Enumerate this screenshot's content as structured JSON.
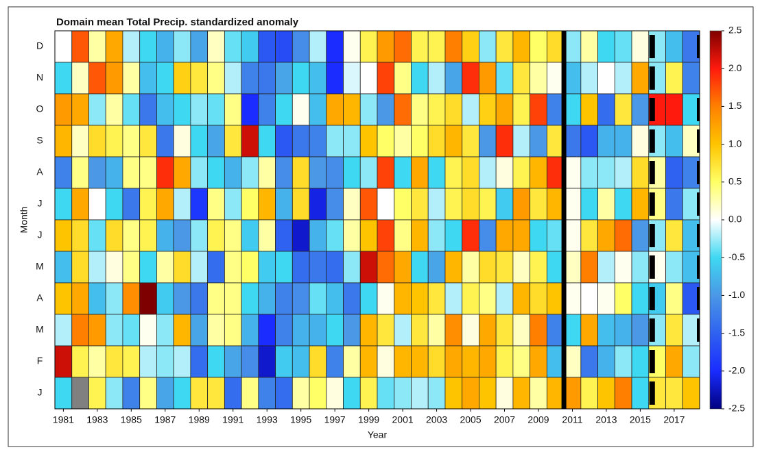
{
  "chart_data": {
    "type": "heatmap",
    "title": "Domain mean Total Precip. standardized anomaly",
    "xlabel": "Year",
    "ylabel": "Month",
    "categories": [
      "D",
      "N",
      "O",
      "S",
      "A",
      "J",
      "J",
      "M",
      "A",
      "M",
      "F",
      "J"
    ],
    "x": [
      1981,
      1982,
      1983,
      1984,
      1985,
      1986,
      1987,
      1988,
      1989,
      1990,
      1991,
      1992,
      1993,
      1994,
      1995,
      1996,
      1997,
      1998,
      1999,
      2000,
      2001,
      2002,
      2003,
      2004,
      2005,
      2006,
      2007,
      2008,
      2009,
      2010,
      2011,
      2012,
      2013,
      2014,
      2015,
      2016,
      2017,
      2018
    ],
    "xlim": [
      1980.5,
      2018.5
    ],
    "xticks": [
      1981,
      1983,
      1985,
      1987,
      1989,
      1991,
      1993,
      1995,
      1997,
      1999,
      2001,
      2003,
      2005,
      2007,
      2009,
      2011,
      2013,
      2015,
      2017
    ],
    "values": [
      [
        0,
        1.7,
        0.3,
        1.2,
        -0.2,
        -0.5,
        -0.8,
        -0.3,
        -0.9,
        0.2,
        -0.4,
        -0.6,
        -1.6,
        -1.7,
        -1.1,
        -0.2,
        -2.0,
        0.05,
        0.6,
        1.3,
        1.6,
        0.6,
        0.6,
        1.5,
        0.9,
        -0.3,
        0.7,
        1.1,
        0.5,
        0.8,
        -0.3,
        0.3,
        -0.5,
        -0.4,
        0.1,
        -0.3,
        -0.7,
        -1.3
      ],
      [
        -0.5,
        0.2,
        1.7,
        1.3,
        0.3,
        -0.7,
        -0.5,
        0.9,
        0.7,
        0.4,
        -0.2,
        -1.2,
        -1.3,
        -0.9,
        -0.5,
        -0.7,
        -2.0,
        -0.1,
        0,
        1.8,
        0.4,
        -0.5,
        -0.2,
        -0.9,
        1.9,
        1.3,
        -0.4,
        0.7,
        0.3,
        0.05,
        -0.7,
        -0.2,
        0,
        -0.2,
        1.2,
        -0.3,
        0.6,
        -1.2
      ],
      [
        1.3,
        1.2,
        -0.3,
        0.3,
        -0.4,
        -1.3,
        -0.7,
        -0.5,
        -0.3,
        -0.4,
        0.4,
        -2.0,
        -1.2,
        -0.5,
        0.05,
        -0.7,
        1.2,
        1.1,
        -0.3,
        -1.0,
        1.6,
        0.4,
        0.6,
        0.8,
        -0.2,
        0.9,
        1.2,
        0.6,
        1.8,
        -1.2,
        -0.5,
        1.0,
        -1.4,
        0.7,
        -1.0,
        2.0,
        2.0,
        -0.5
      ],
      [
        1.1,
        0.2,
        0.8,
        0.6,
        0.4,
        0.7,
        -1.3,
        0.1,
        -0.5,
        -0.9,
        0.7,
        2.2,
        -0.5,
        -1.6,
        -1.3,
        -1.2,
        -0.3,
        -0.3,
        1.0,
        0.5,
        0.3,
        0.5,
        0.8,
        1.1,
        0.7,
        -1.0,
        1.9,
        -0.2,
        -1.0,
        0.7,
        -1.3,
        -1.6,
        -0.8,
        -0.8,
        0.1,
        -0.3,
        -0.7,
        0.2
      ],
      [
        -1.2,
        0.4,
        -1.0,
        -0.8,
        0.4,
        0.4,
        1.9,
        1.2,
        -0.3,
        -0.5,
        -0.8,
        -0.3,
        0.3,
        -1.1,
        0.8,
        -1.0,
        -1.1,
        -0.5,
        -0.3,
        1.8,
        -0.5,
        1.2,
        -0.5,
        0.6,
        0.8,
        -0.2,
        0.1,
        0.6,
        1.1,
        1.9,
        0.05,
        -0.3,
        -0.3,
        -0.2,
        0.8,
        0.3,
        -1.5,
        -1.2
      ],
      [
        -0.5,
        1.2,
        0,
        -0.5,
        -1.3,
        0.6,
        1.2,
        -0.2,
        -1.9,
        0.4,
        -0.3,
        0.5,
        1.1,
        -0.8,
        0.8,
        -2.1,
        -1.1,
        0.2,
        1.7,
        0,
        0.5,
        0.7,
        -0.2,
        0.6,
        0.8,
        0.6,
        -0.6,
        1.3,
        0.7,
        1.1,
        0.05,
        -0.5,
        0.3,
        -0.5,
        1.1,
        0.4,
        -1.3,
        -0.3
      ],
      [
        1.0,
        0.8,
        -0.4,
        0.8,
        0.4,
        0.6,
        -0.8,
        -1.0,
        -0.3,
        0.6,
        0.4,
        -0.6,
        0.3,
        -1.5,
        -2.2,
        -0.8,
        -0.4,
        0.3,
        1.0,
        1.8,
        0.4,
        1.1,
        -0.3,
        -0.5,
        1.9,
        -1.1,
        1.2,
        1.2,
        -0.5,
        -0.4,
        0.05,
        0.7,
        1.2,
        1.6,
        -1.0,
        -0.3,
        0.7,
        -0.7
      ],
      [
        -0.7,
        0.8,
        -0.2,
        0.1,
        0.4,
        -0.5,
        0.3,
        0.8,
        -0.2,
        -1.4,
        0.4,
        0.5,
        -0.6,
        -0.5,
        -1.4,
        -1.3,
        -1.4,
        -0.3,
        2.2,
        1.6,
        1.2,
        -0.5,
        -0.9,
        1.1,
        0.3,
        0.8,
        0.7,
        0.2,
        0.6,
        -0.5,
        0.2,
        1.5,
        -0.2,
        0.05,
        -0.3,
        0.05,
        -0.3,
        -0.7
      ],
      [
        1.0,
        1.2,
        -0.7,
        -0.3,
        1.4,
        2.5,
        -0.6,
        -1.0,
        -1.3,
        0.4,
        0.4,
        -0.5,
        -0.8,
        -1.2,
        -1.1,
        -0.4,
        -0.7,
        -1.3,
        -0.5,
        0.05,
        1.1,
        1.0,
        0.7,
        -0.2,
        0.6,
        0.4,
        -0.2,
        1.1,
        0.8,
        1.0,
        0.05,
        0,
        0.05,
        0.5,
        -0.5,
        -0.6,
        0.4,
        -1.6
      ],
      [
        -0.2,
        1.5,
        1.3,
        -0.3,
        -0.4,
        0.05,
        -0.3,
        1.1,
        -0.9,
        0.3,
        0.4,
        -0.8,
        -2.0,
        -1.2,
        -0.8,
        -0.8,
        -0.5,
        -1.0,
        1.1,
        0.7,
        -0.2,
        0.7,
        0.3,
        1.4,
        0.1,
        1.2,
        0.7,
        0.2,
        1.5,
        -1.2,
        -0.5,
        1.2,
        -0.7,
        -0.8,
        -1.0,
        -0.3,
        0.7,
        -0.2
      ],
      [
        2.2,
        0.6,
        0.3,
        0.7,
        0.6,
        -0.2,
        -0.3,
        -0.2,
        -1.4,
        -0.5,
        -0.9,
        -1.1,
        -2.2,
        -0.6,
        -0.7,
        0.8,
        -1.2,
        0.3,
        1.1,
        0.1,
        1.1,
        1.1,
        0.8,
        1.2,
        1.1,
        1.2,
        0.6,
        0.4,
        1.2,
        -0.7,
        0.2,
        -1.3,
        -0.8,
        -0.3,
        -0.5,
        0.5,
        1.2,
        -0.3
      ],
      [
        -0.5,
        null,
        0.6,
        -0.3,
        -1.2,
        0.4,
        -0.9,
        -0.5,
        0.7,
        0.7,
        -1.4,
        0.4,
        -1.2,
        -1.4,
        0.3,
        0.5,
        0.1,
        -0.5,
        0.6,
        -0.4,
        -0.3,
        -0.2,
        -0.3,
        1.0,
        1.2,
        1.0,
        0.1,
        1.1,
        0.3,
        1.1,
        1.3,
        0.6,
        1.0,
        1.5,
        -0.5,
        0.7,
        0.7,
        1.0
      ]
    ],
    "clim": [
      -2.5,
      2.5
    ],
    "cticks": [
      2.5,
      {
        "value": 2,
        "label": "2.0"
      },
      1.5,
      {
        "value": 1,
        "label": "1.0"
      },
      0.5,
      {
        "value": 0,
        "label": "0.0"
      },
      -0.5,
      {
        "value": -1,
        "label": "-1.0"
      },
      -1.5,
      {
        "value": -2,
        "label": "-2.0"
      },
      -2.5
    ],
    "colormap": [
      "#00007f",
      "#1a2cff",
      "#2f62f0",
      "#4a98e6",
      "#3fd8f2",
      "#ffffff",
      "#ffff66",
      "#ffc400",
      "#ff8000",
      "#ff1a0d",
      "#7f0000"
    ],
    "missing_color": "#808080"
  }
}
